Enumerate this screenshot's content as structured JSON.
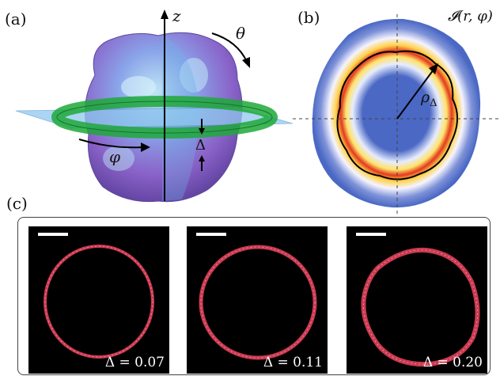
{
  "panels": {
    "a": {
      "label": "(a)",
      "axis_z": "z",
      "angle_theta": "θ",
      "angle_phi": "φ",
      "thickness": "Δ"
    },
    "b": {
      "label": "(b)",
      "intensity_label": "𝓘(r, φ)",
      "radius_label": "ρ",
      "radius_sub": "Δ"
    },
    "c": {
      "label": "(c)",
      "images": [
        {
          "delta_label": "Δ = 0.07"
        },
        {
          "delta_label": "Δ = 0.11"
        },
        {
          "delta_label": "Δ = 0.20"
        }
      ]
    }
  },
  "colors": {
    "membrane_red": "#e0405a",
    "plane_blue": "#8fc8ee",
    "band_green": "#1fa83a",
    "map_blue": "#4a68c4",
    "ring_red": "#d02020",
    "ring_yellow": "#ffd24a"
  }
}
